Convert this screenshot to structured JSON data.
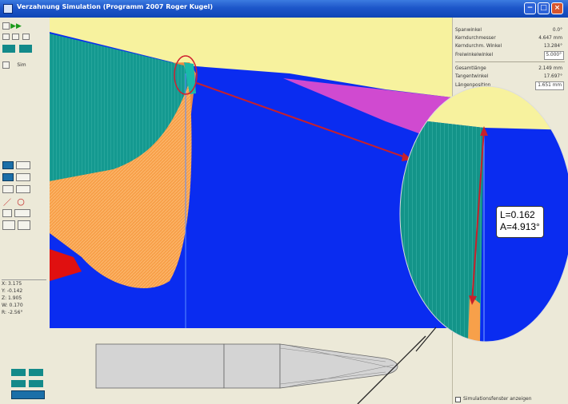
{
  "window": {
    "title": "Verzahnung Simulation (Programm 2007 Roger Kugel)",
    "min_glyph": "−",
    "max_glyph": "□",
    "close_glyph": "×"
  },
  "toolbar": {
    "sim_label": "Sim",
    "readouts": [
      "X: 3.175",
      "Y: -0.142",
      "Z: 1.905",
      "W: 0.170",
      "R: -2.56°"
    ]
  },
  "panel": {
    "rows_top": [
      {
        "label": "Spanwinkel",
        "value": "0.0°",
        "boxed": false
      },
      {
        "label": "Kerndurchmesser",
        "value": "4.647 mm",
        "boxed": false
      },
      {
        "label": "Kerndurchm. Winkel",
        "value": "13.284°",
        "boxed": false
      },
      {
        "label": "Freiwinkelwinkel",
        "value": "5.000°",
        "boxed": true
      }
    ],
    "rows_mid": [
      {
        "label": "Gesamtlänge",
        "value": "2.149 mm",
        "boxed": false
      },
      {
        "label": "Tangentwinkel",
        "value": "17.697°",
        "boxed": false
      },
      {
        "label": "Längenposition",
        "value": "1.651 mm",
        "boxed": true
      }
    ],
    "checkbox_label": "Simulationsfenster anzeigen"
  },
  "measurement": {
    "length_text": "L=0.162",
    "angle_text": "A=4.913°"
  },
  "colors": {
    "background_blue": "#0a2cf0",
    "teal": "#149990",
    "orange": "#f7a04a",
    "yellow_highlight": "#f7f29e",
    "magenta": "#d04ad0",
    "red": "#e01010",
    "arrow": "#c8202a"
  }
}
